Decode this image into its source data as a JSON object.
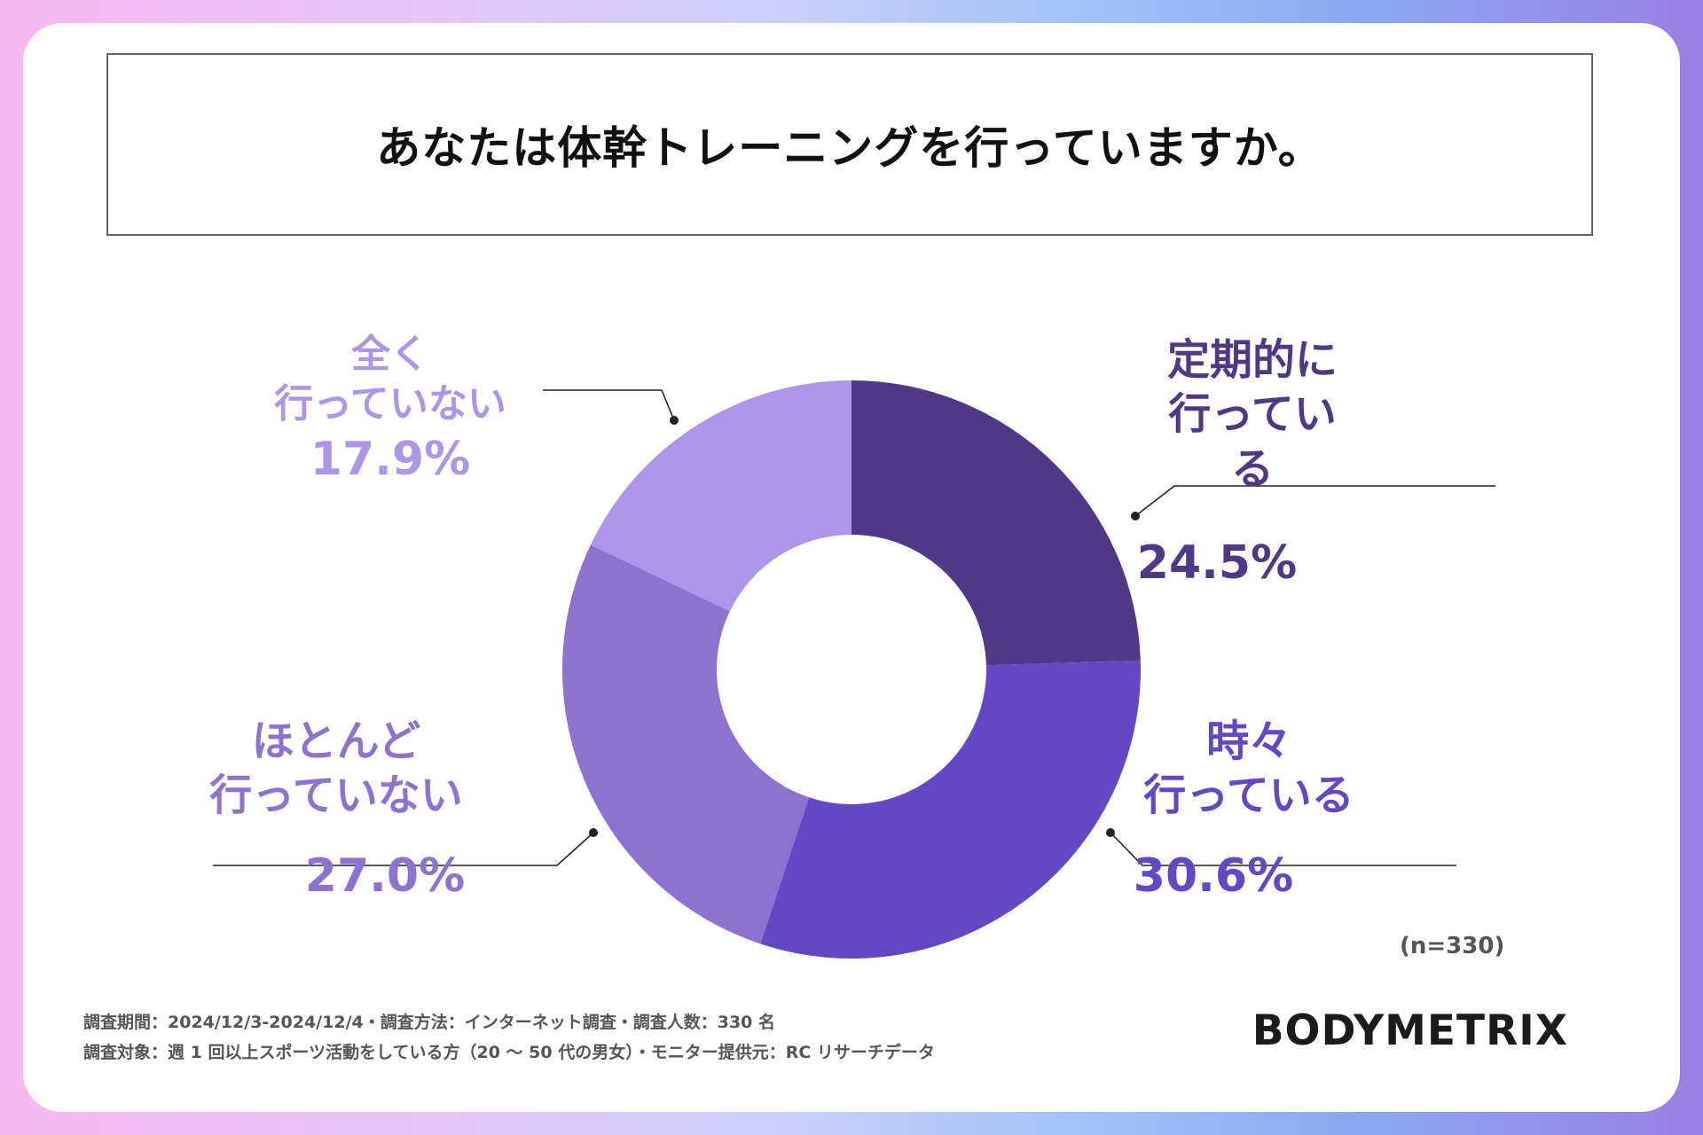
{
  "title": "あなたは体幹トレーニングを行っていますか。",
  "sample_note": "(n=330)",
  "footnotes": {
    "line1": "調査期間：2024/12/3-2024/12/4・調査方法：インターネット調査・調査人数：330 名",
    "line2": "調査対象：週 1 回以上スポーツ活動をしている方（20 〜 50 代の男女）・モニター提供元：RC リサーチデータ"
  },
  "brand": "BODYMETRIX",
  "labels": {
    "regular": {
      "line1": "定期的に",
      "line2": "行っている",
      "pct": "24.5%"
    },
    "sometimes": {
      "line1": "時々",
      "line2": "行っている",
      "pct": "30.6%"
    },
    "rarely": {
      "line1": "ほとんど",
      "line2": "行っていない",
      "pct": "27.0%"
    },
    "never": {
      "line1": "全く",
      "line2": "行っていない",
      "pct": "17.9%"
    }
  },
  "chart_data": {
    "type": "pie",
    "title": "あなたは体幹トレーニングを行っていますか。",
    "donut": true,
    "categories": [
      "定期的に行っている",
      "時々行っている",
      "ほとんど行っていない",
      "全く行っていない"
    ],
    "values": [
      24.5,
      30.6,
      27.0,
      17.9
    ],
    "colors": [
      "#4f3885",
      "#6347c5",
      "#8e72d0",
      "#ad95ea"
    ],
    "legend": "none"
  }
}
